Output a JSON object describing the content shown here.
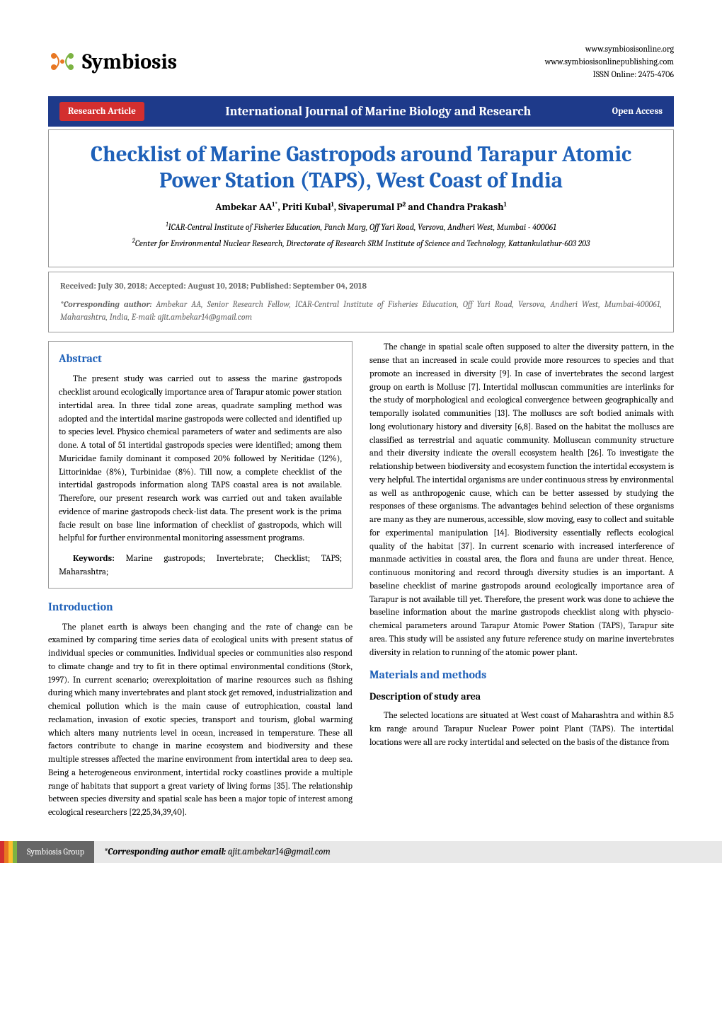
{
  "header": {
    "logo_text": "Symbiosis",
    "url1": "www.symbiosisonline.org",
    "url2": "www.symbiosisonlinepublishing.com",
    "issn": "ISSN Online:  2475-4706",
    "logo_colors": {
      "orange": "#e87722",
      "green": "#7cb342"
    }
  },
  "bar": {
    "left": "Research Article",
    "center": "International Journal of Marine Biology and Research",
    "right": "Open Access",
    "bg_color": "#1e3a8a",
    "left_bg": "#d32f2f"
  },
  "title_box": {
    "title": "Checklist of Marine Gastropods around Tarapur Atomic Power Station (TAPS), West Coast of India",
    "authors_html": "Ambekar AA<sup>1*</sup>, Priti Kubal<sup>1</sup>, Sivaperumal P<sup>2</sup> and Chandra Prakash<sup>1</sup>",
    "aff1_html": "<sup>1</sup>ICAR-Central Institute of Fisheries Education, Panch Marg, Off Yari Road, Versova, Andheri West, Mumbai - 400061",
    "aff2_html": "<sup>2</sup>Center for Environmental Nuclear Research, Directorate of Research SRM Institute of Science and Technology, Kattankulathur-603 203"
  },
  "meta": {
    "dates": "Received: July 30, 2018; Accepted: August 10, 2018; Published: September 04, 2018",
    "corresponding_html": "<b>*Corresponding author:</b> Ambekar AA, Senior Research Fellow, ICAR-Central Institute of Fisheries Education, Off Yari Road, Versova, Andheri West, Mumbai-400061, Maharashtra, India, E-mail: ajit.ambekar14@gmail.com"
  },
  "abstract": {
    "heading": "Abstract",
    "body": "The present study was carried out to assess the marine gastropods checklist around ecologically importance area of Tarapur atomic power station intertidal area. In three tidal zone areas, quadrate sampling method was adopted and the intertidal marine gastropods were collected and identified up to species level. Physico chemical parameters of water and sediments are also done. A total of 51 intertidal gastropods species were identified; among them Muricidae family dominant it composed 20% followed by Neritidae (12%), Littorinidae (8%), Turbinidae (8%). Till now, a complete checklist of the intertidal gastropods information along TAPS coastal area is not available. Therefore, our present research work was carried out and taken available evidence of marine gastropods check-list data. The present work is the prima facie result on base line information of checklist of gastropods, which will helpful for further environmental monitoring assessment programs.",
    "keywords_html": "<b>Keywords:</b> Marine gastropods; Invertebrate; Checklist; TAPS; Maharashtra;"
  },
  "intro": {
    "heading": "Introduction",
    "para1": "The planet earth is always been changing and the rate of change can be examined by comparing time series data of ecological units with present status of individual species or communities. Individual species or communities also respond to climate change and try to fit in there optimal environmental conditions (Stork, 1997). In current scenario; overexploitation of marine resources such as fishing during which many invertebrates and plant stock get removed, industrialization and chemical pollution which is the main cause of eutrophication, coastal land reclamation, invasion of exotic species, transport and tourism, global warming which alters many nutrients level in ocean, increased in temperature. These all factors contribute to change in marine ecosystem and biodiversity and these multiple stresses affected the marine environment from intertidal area to deep sea. Being a heterogeneous environment, intertidal rocky coastlines provide a multiple range of habitats that support a great variety of living forms [35]. The relationship between species diversity and spatial scale has been a major topic of interest among ecological researchers [22,25,34,39,40]."
  },
  "right_col": {
    "para1": "The change in spatial scale often supposed to alter the diversity pattern, in the sense that an increased in scale could provide more resources to species and that promote an increased in diversity [9].  In case of invertebrates the second largest group on earth is Mollusc [7]. Intertidal molluscan communities are interlinks for the study of morphological and ecological convergence between geographically and temporally isolated communities [13]. The molluscs are soft bodied animals with long evolutionary history and diversity [6,8]. Based on the habitat the molluscs are classified as terrestrial and aquatic community. Molluscan community structure and their diversity indicate the overall ecosystem health [26]. To investigate the relationship between biodiversity and ecosystem function the intertidal ecosystem is very helpful. The intertidal organisms are under continuous stress by environmental as well as anthropogenic cause, which can be better assessed by studying the responses of these organisms. The advantages behind selection of these organisms are many as they are numerous, accessible, slow moving, easy to collect and suitable for experimental manipulation    [14]. Biodiversity essentially reflects ecological quality of the habitat [37]. In current scenario with increased interference of manmade activities in coastal area, the flora and fauna are under threat. Hence, continuous monitoring and record through diversity studies is an important. A baseline checklist of marine gastropods around ecologically importance area of Tarapur is not available till yet. Therefore, the present work was done to achieve the baseline information about the marine gastropods checklist along with physcio-chemical parameters around Tarapur Atomic Power Station (TAPS), Tarapur site area. This study will be assisted any future reference study on marine invertebrates diversity in relation to running of the atomic power plant."
  },
  "methods": {
    "heading": "Materials and methods",
    "sub_heading": "Description of study area",
    "para1": "The selected locations are situated at West coast of Maharashtra and within 8.5 km range around Tarapur Nuclear Power point Plant (TAPS). The intertidal locations were all are rocky intertidal and selected on the basis of the distance from"
  },
  "footer": {
    "label": "Symbiosis Group",
    "email_html": "<b>*Corresponding author email:</b> ajit.ambekar14@gmail.com",
    "stripe_colors": [
      "#d32f2f",
      "#e87722",
      "#fbc02d",
      "#7cb342"
    ],
    "label_bg": "#666666",
    "email_bg": "#e8e8e8"
  },
  "styles": {
    "heading_color": "#1e60b8",
    "border_color": "#999999",
    "body_fontsize": 12.5,
    "title_fontsize": 31,
    "heading_fontsize": 16
  }
}
